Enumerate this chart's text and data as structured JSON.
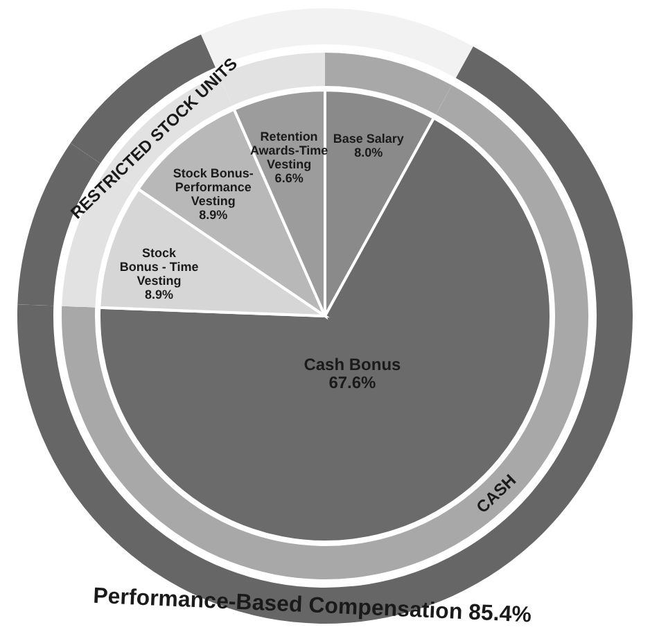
{
  "chart_data": {
    "type": "pie",
    "categories": [
      "Base Salary",
      "Cash Bonus",
      "Stock Bonus - Time Vesting",
      "Stock Bonus-Performance Vesting",
      "Retention Awards-Time Vesting"
    ],
    "series": [
      {
        "values": [
          8.0,
          67.6,
          8.9,
          8.9,
          6.6
        ],
        "colors": [
          "#8a8a8a",
          "#6b6b6b",
          "#d6d6d6",
          "#b8b8b8",
          "#9c9c9c"
        ],
        "value_labels": [
          "8.0%",
          "67.6%",
          "8.9%",
          "8.9%",
          "6.6%"
        ]
      },
      {
        "type": "donut",
        "values": [
          8.0,
          67.6,
          8.9,
          8.9,
          6.6
        ],
        "colors": [
          "#a8a8a8",
          "#a8a8a8",
          "#e2e2e2",
          "#e2e2e2",
          "#e2e2e2"
        ]
      },
      {
        "type": "donut",
        "values": [
          8.0,
          67.6,
          8.9,
          8.9,
          6.6
        ],
        "colors": [
          "#f2f2f2",
          "#666666",
          "#666666",
          "#666666",
          "#f2f2f2"
        ]
      }
    ],
    "annotations": [
      "CASH",
      "RESTRICTED STOCK UNITS",
      "Performance-Based Compensation 85.4%"
    ]
  }
}
